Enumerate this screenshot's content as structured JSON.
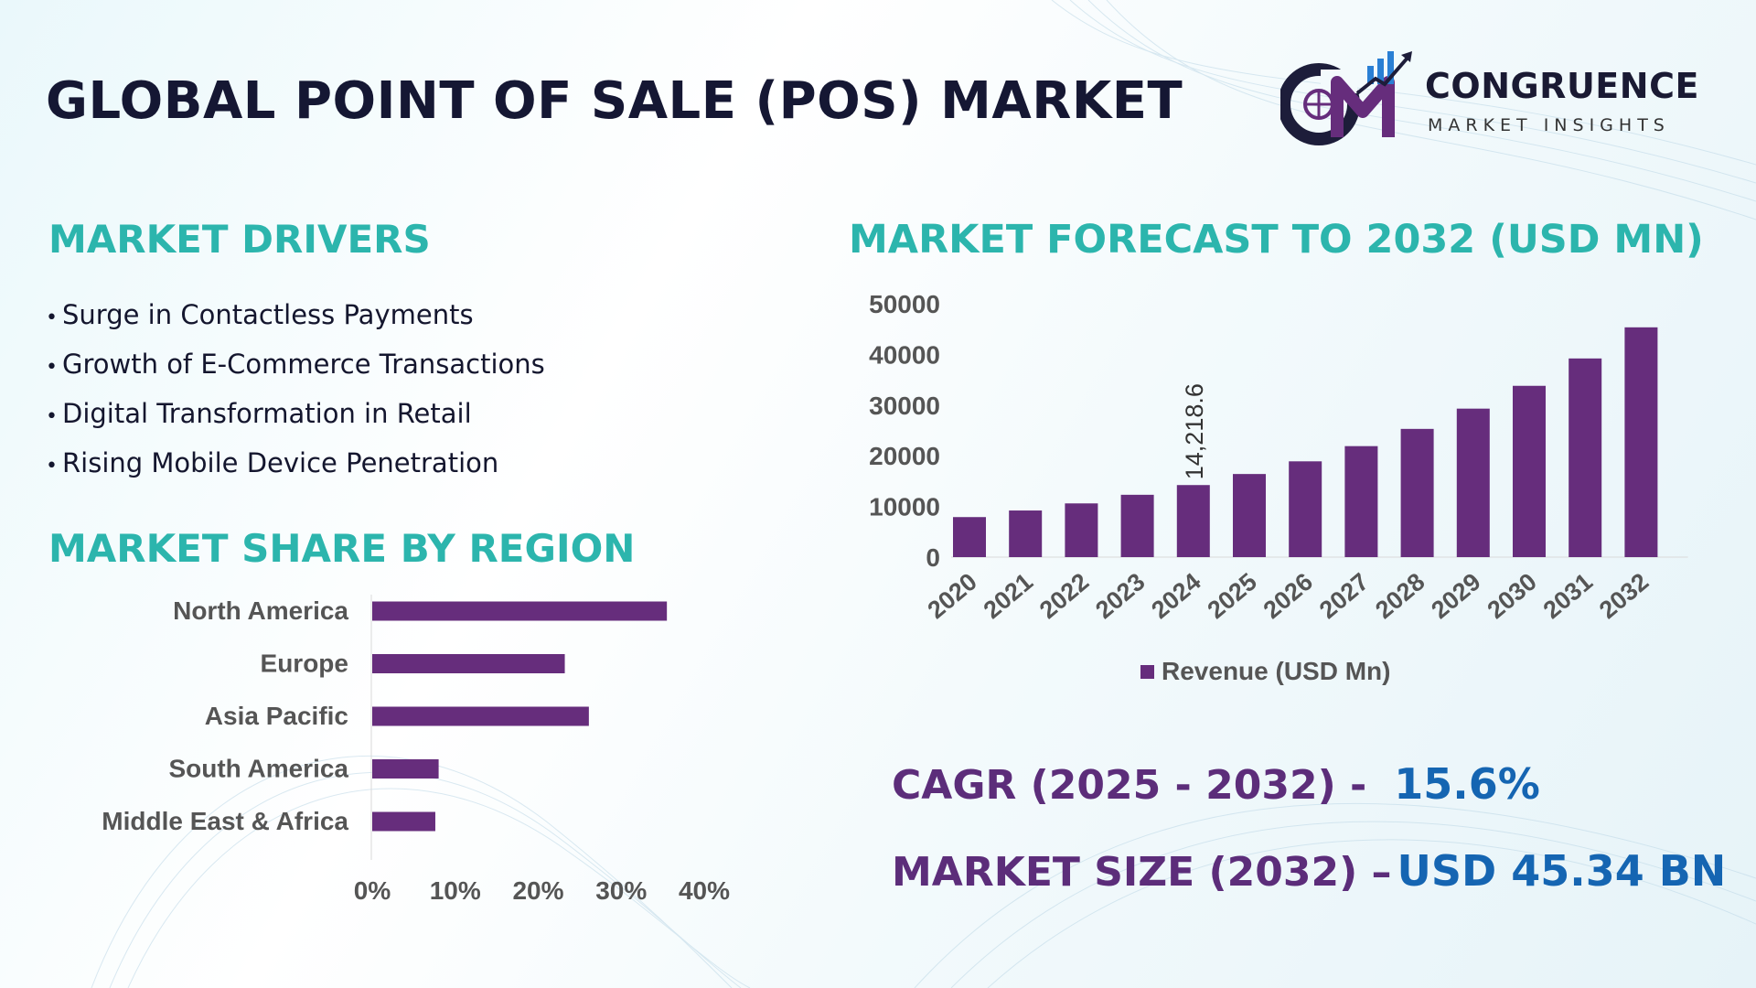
{
  "header": {
    "title": "GLOBAL POINT OF SALE (POS) MARKET",
    "logo_brand": "CONGRUENCE",
    "logo_tagline": "MARKET INSIGHTS"
  },
  "drivers": {
    "title": "MARKET DRIVERS",
    "items": [
      "Surge in Contactless Payments",
      "Growth of E-Commerce Transactions",
      "Digital Transformation in Retail",
      "Rising Mobile Device Penetration"
    ]
  },
  "region": {
    "title": "MARKET SHARE BY REGION"
  },
  "forecast": {
    "title": "MARKET FORECAST TO 2032 (USD MN)"
  },
  "kpis": {
    "cagr_label": "CAGR (2025 - 2032) -",
    "cagr_value": "15.6%",
    "size_label": "MARKET SIZE (2032) –",
    "size_value": "USD 45.34 BN"
  },
  "colors": {
    "bar": "#662d7c",
    "accent_teal": "#2cb5ad",
    "title_dark": "#151733",
    "kpi_label": "#5c2d7a",
    "kpi_value": "#1565b2"
  },
  "chart_data": [
    {
      "type": "bar",
      "orientation": "horizontal",
      "categories": [
        "North America",
        "Europe",
        "Asia Pacific",
        "South America",
        "Middle East & Africa"
      ],
      "values": [
        35.5,
        23.2,
        26.1,
        8.0,
        7.6
      ],
      "xlim": [
        0,
        40
      ],
      "x_ticks": [
        "0%",
        "10%",
        "20%",
        "30%",
        "40%"
      ],
      "grid": false,
      "legend": "none"
    },
    {
      "type": "bar",
      "categories": [
        "2020",
        "2021",
        "2022",
        "2023",
        "2024",
        "2025",
        "2026",
        "2027",
        "2028",
        "2029",
        "2030",
        "2031",
        "2032"
      ],
      "series": [
        {
          "name": "Revenue (USD Mn)",
          "values": [
            7900,
            9200,
            10600,
            12300,
            14218.6,
            16400,
            18900,
            21900,
            25300,
            29300,
            33800,
            39200,
            45340
          ]
        }
      ],
      "data_labels": [
        {
          "index": 4,
          "text": "14,218.6"
        }
      ],
      "ylim": [
        0,
        50000
      ],
      "y_ticks": [
        "0",
        "10000",
        "20000",
        "30000",
        "40000",
        "50000"
      ],
      "grid": false,
      "legend": "bottom"
    }
  ]
}
